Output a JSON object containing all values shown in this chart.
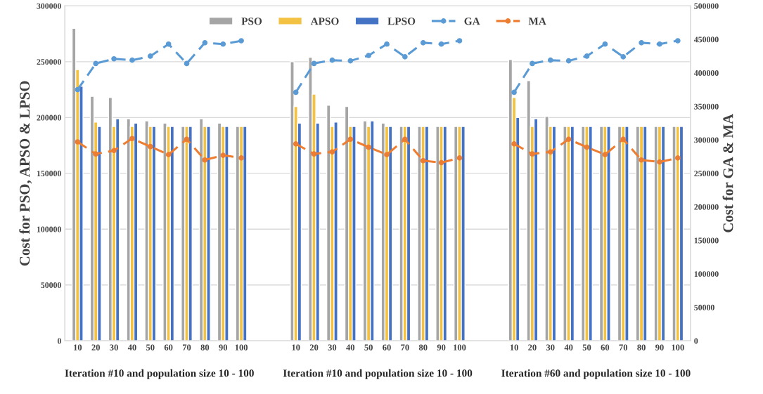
{
  "chart_data": {
    "type": "bar",
    "ylabel": "Cost for PSO, APSO & LPSO",
    "y2label": "Cost for GA & MA",
    "categories": [
      "10",
      "20",
      "30",
      "40",
      "50",
      "60",
      "70",
      "80",
      "90",
      "100",
      null,
      null,
      "10",
      "20",
      "30",
      "40",
      "50",
      "60",
      "70",
      "80",
      "90",
      "100",
      null,
      null,
      "10",
      "20",
      "30",
      "40",
      "50",
      "60",
      "70",
      "80",
      "90",
      "100"
    ],
    "series": [
      {
        "name": "PSO",
        "color": "#a5a5a5",
        "values": [
          280000,
          219000,
          218000,
          199000,
          197000,
          195000,
          192000,
          199000,
          195000,
          192000,
          null,
          null,
          250000,
          254000,
          211000,
          210000,
          197000,
          195000,
          192000,
          192000,
          192000,
          192000,
          null,
          null,
          252000,
          233000,
          201000,
          192000,
          192000,
          192000,
          192000,
          192000,
          192000,
          192000
        ]
      },
      {
        "name": "APSO",
        "color": "#f4c242",
        "values": [
          243000,
          196000,
          192000,
          192000,
          192000,
          192000,
          192000,
          192000,
          192000,
          192000,
          null,
          null,
          210000,
          221000,
          192000,
          192000,
          192000,
          192000,
          192000,
          192000,
          192000,
          192000,
          null,
          null,
          218000,
          192000,
          192000,
          192000,
          192000,
          192000,
          192000,
          192000,
          192000,
          192000
        ]
      },
      {
        "name": "LPSO",
        "color": "#4472c4",
        "values": [
          228000,
          192000,
          199000,
          195000,
          192000,
          192000,
          192000,
          192000,
          192000,
          192000,
          null,
          null,
          195000,
          195000,
          196000,
          192000,
          197000,
          192000,
          192000,
          192000,
          192000,
          192000,
          null,
          null,
          200000,
          199000,
          192000,
          192000,
          192000,
          192000,
          192000,
          192000,
          192000,
          192000
        ]
      },
      {
        "name": "GA",
        "type": "line",
        "axis": "y2",
        "color": "#5b9bd5",
        "marker": "circle",
        "line_style": "dashed",
        "values": [
          375000,
          414000,
          421000,
          419000,
          425000,
          443000,
          414000,
          445000,
          443000,
          448000,
          null,
          null,
          371000,
          414000,
          419000,
          418000,
          426000,
          443000,
          424000,
          445000,
          443000,
          448000,
          null,
          null,
          371000,
          414000,
          419000,
          418000,
          425000,
          443000,
          424000,
          445000,
          443000,
          448000
        ]
      },
      {
        "name": "MA",
        "type": "line",
        "axis": "y2",
        "color": "#ed7d31",
        "marker": "circle",
        "line_style": "dashed",
        "values": [
          297000,
          279000,
          284000,
          302000,
          290000,
          278000,
          301000,
          270000,
          277000,
          273000,
          null,
          null,
          294000,
          279000,
          282000,
          301000,
          289000,
          278000,
          301000,
          269000,
          266000,
          273000,
          null,
          null,
          294000,
          279000,
          282000,
          301000,
          289000,
          278000,
          301000,
          270000,
          267000,
          273000
        ]
      }
    ],
    "ylim": [
      0,
      300000
    ],
    "yticks": [
      0,
      50000,
      100000,
      150000,
      200000,
      250000,
      300000
    ],
    "y2lim": [
      0,
      500000
    ],
    "y2ticks": [
      0,
      50000,
      100000,
      150000,
      200000,
      250000,
      300000,
      350000,
      400000,
      450000,
      500000
    ],
    "grid": "y",
    "legend": "top",
    "annotations": [
      "Iteration #10 and population size 10 - 100",
      "Iteration #10 and population size 10 - 100",
      "Iteration #60 and population size 10 - 100"
    ]
  }
}
